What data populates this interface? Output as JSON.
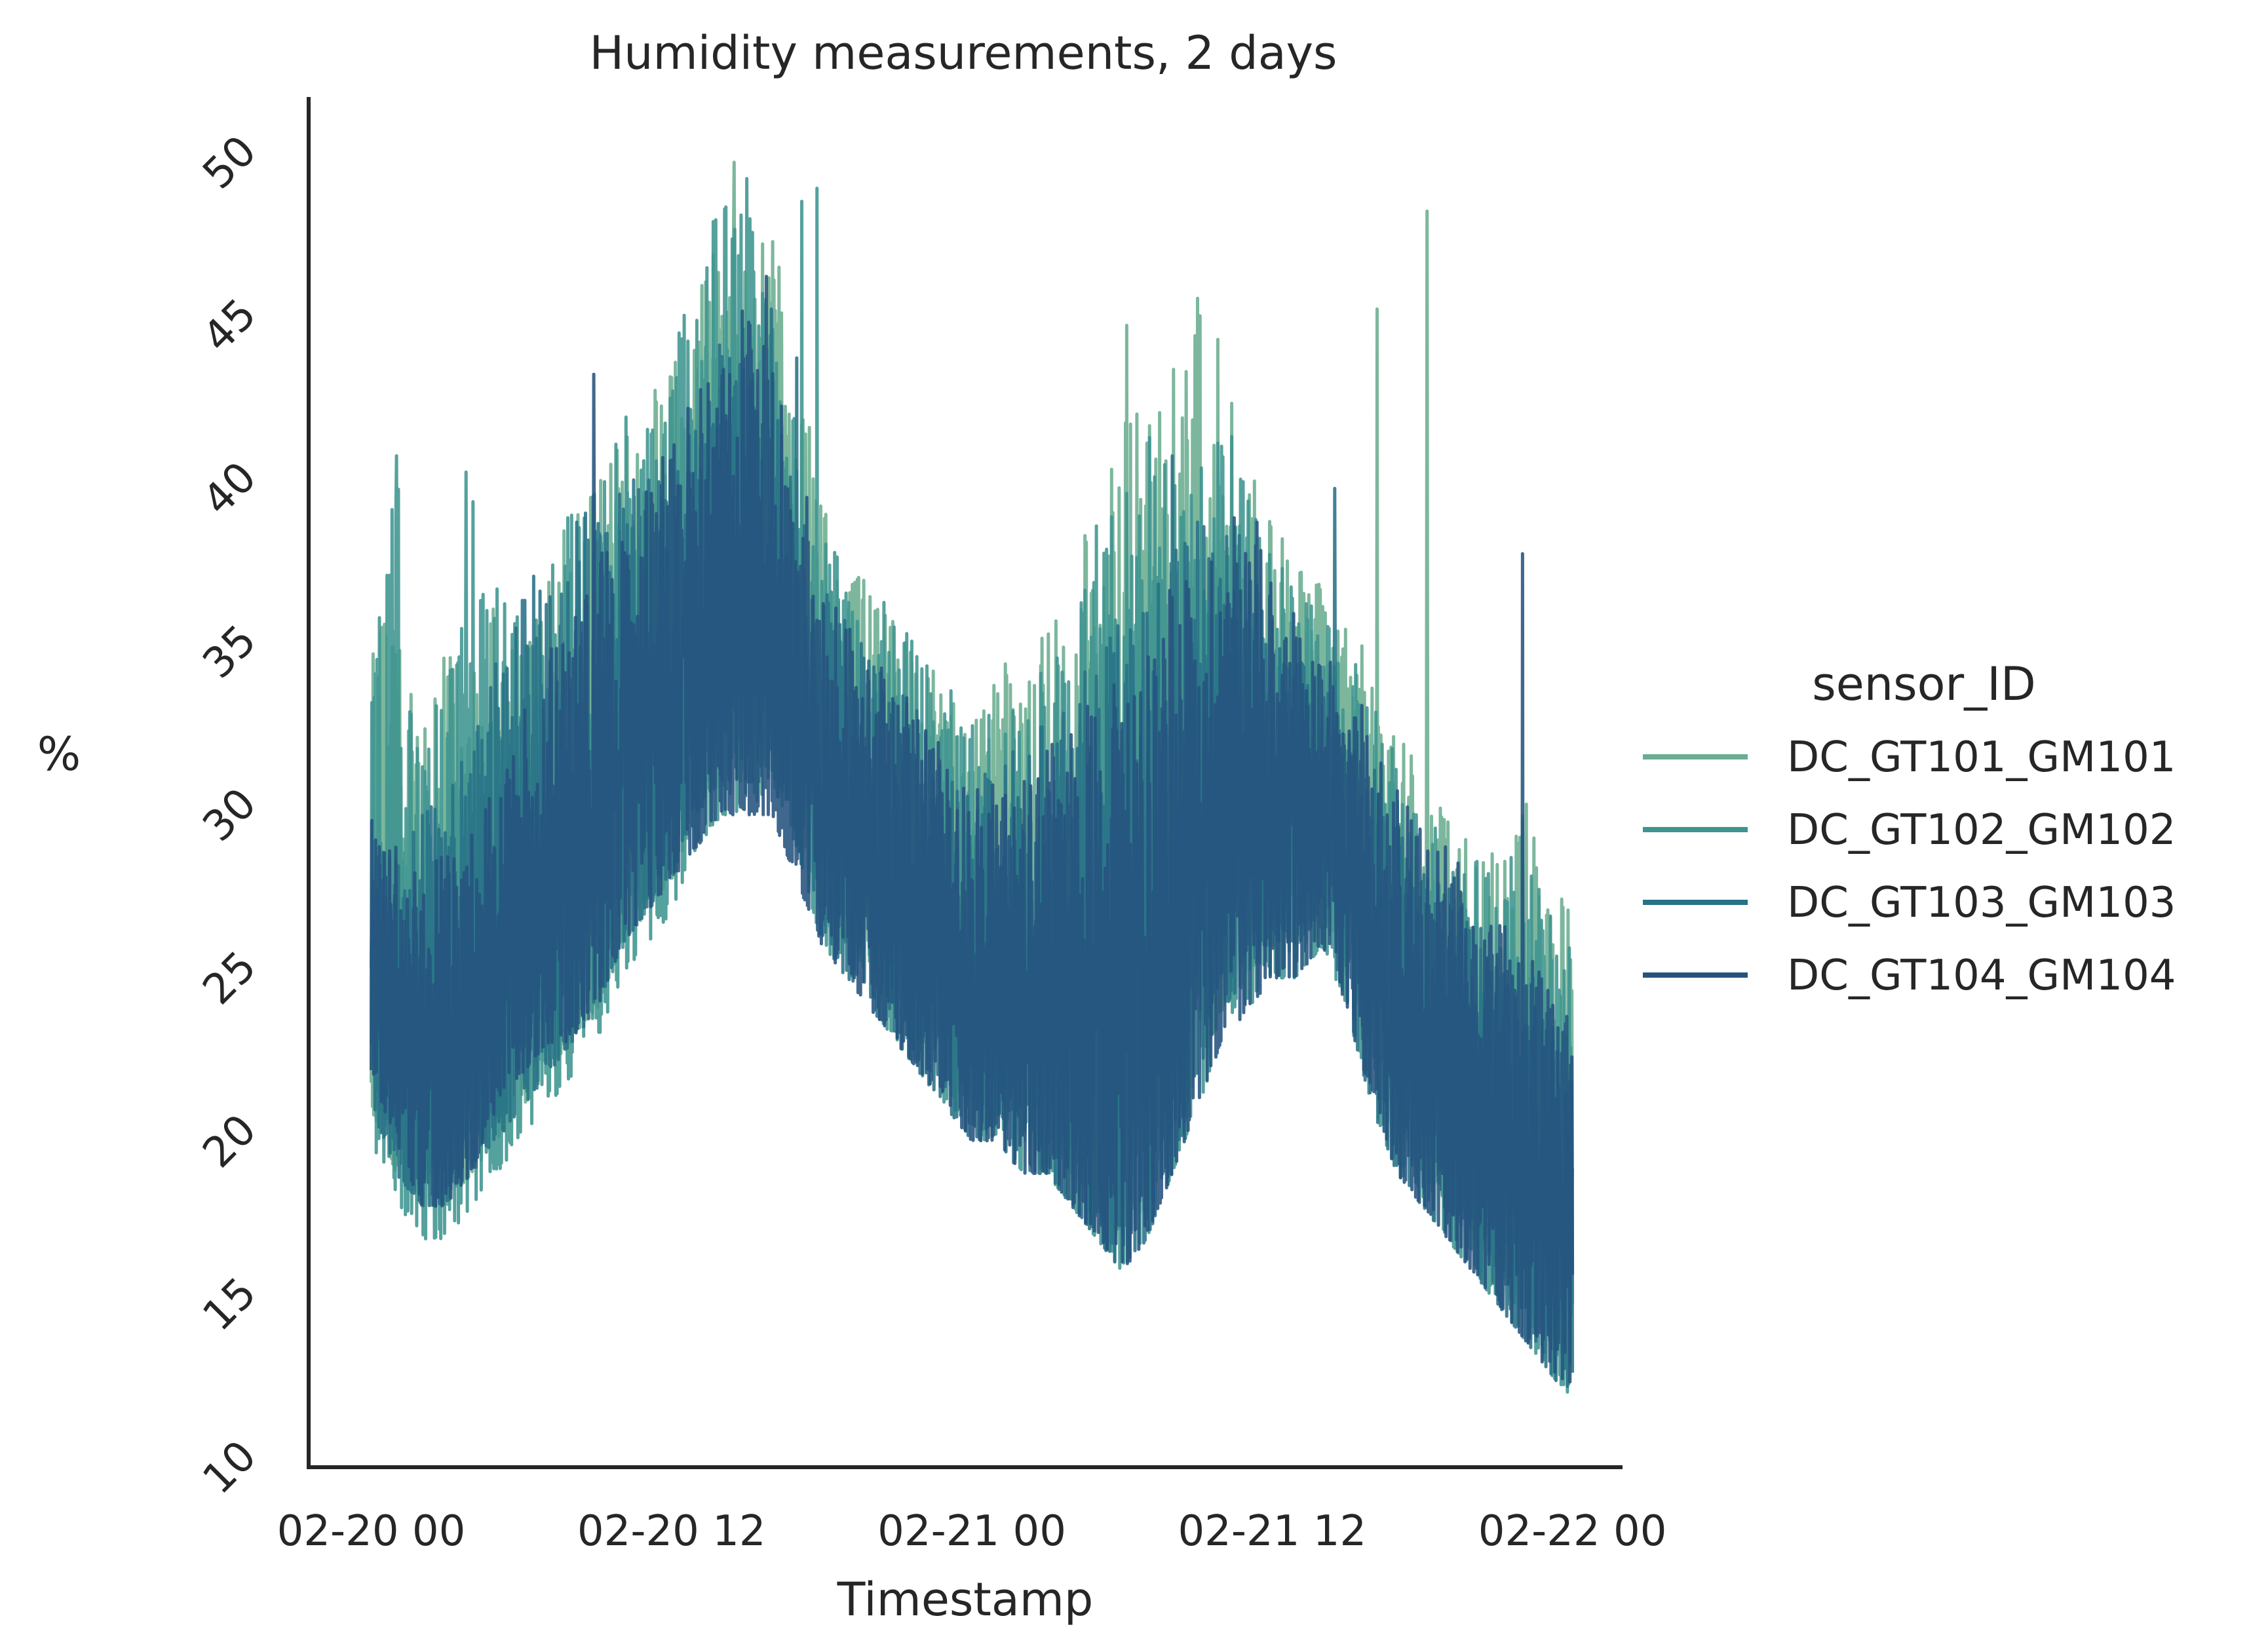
{
  "chart_data": {
    "type": "line",
    "title": "Humidity measurements, 2 days",
    "xlabel": "Timestamp",
    "ylabel": "%",
    "x_ticks": [
      "02-20 00",
      "02-20 12",
      "02-21 00",
      "02-21 12",
      "02-22 00"
    ],
    "y_ticks": [
      "10",
      "15",
      "20",
      "25",
      "30",
      "35",
      "40",
      "45",
      "50"
    ],
    "ylim": [
      10,
      52
    ],
    "x_range_hours": [
      -2.5,
      50
    ],
    "legend": {
      "title": "sensor_ID",
      "position": "right",
      "frame": false
    },
    "grid": false,
    "x": [
      0,
      1,
      2,
      3,
      4,
      5,
      6,
      7,
      8,
      9,
      10,
      11,
      12,
      13,
      14,
      15,
      16,
      17,
      18,
      19,
      20,
      21,
      22,
      23,
      24,
      25,
      26,
      27,
      28,
      29,
      30,
      31,
      32,
      33,
      34,
      35,
      36,
      37,
      38,
      39,
      40,
      41,
      42,
      43,
      44,
      45,
      46,
      47,
      48
    ],
    "series": [
      {
        "name": "DC_GT101_GM101",
        "color": "#6aad90",
        "low": [
          21,
          19,
          18,
          18,
          19,
          20,
          21,
          22,
          23,
          24,
          26,
          27,
          28,
          30,
          31,
          31,
          32,
          30,
          27,
          26,
          25,
          24,
          23,
          22,
          21,
          21,
          20,
          20,
          19,
          18,
          17,
          18,
          20,
          22,
          24,
          25,
          26,
          26,
          27,
          25,
          22,
          20,
          19,
          18,
          17,
          16,
          15,
          14,
          13
        ],
        "high": [
          35,
          37,
          33,
          35,
          34,
          37,
          35,
          38,
          39,
          40,
          42,
          43,
          44,
          46,
          49,
          47,
          48,
          44,
          40,
          38,
          37,
          36,
          35,
          34,
          33,
          35,
          34,
          36,
          38,
          40,
          42,
          44,
          45,
          46,
          45,
          41,
          39,
          38,
          37,
          36,
          35,
          33,
          31,
          30,
          29,
          30,
          31,
          28,
          27
        ],
        "spikes": [
          [
            6.8,
            35.9
          ],
          [
            14.5,
            50.0
          ],
          [
            30.2,
            45.0
          ],
          [
            40.2,
            45.5
          ],
          [
            42.2,
            48.5
          ]
        ]
      },
      {
        "name": "DC_GT102_GM102",
        "color": "#3e9490",
        "low": [
          20,
          18,
          17,
          17,
          18,
          19,
          20,
          21,
          22,
          23,
          25,
          26,
          27,
          29,
          30,
          30,
          31,
          29,
          26,
          25,
          24,
          23,
          22,
          21,
          20,
          20,
          19,
          19,
          18,
          17,
          16,
          17,
          19,
          21,
          23,
          24,
          25,
          25,
          26,
          24,
          21,
          19,
          18,
          17,
          16,
          15,
          14,
          13,
          12
        ],
        "high": [
          34,
          41,
          33,
          34,
          40,
          37,
          36,
          37,
          40,
          41,
          43,
          42,
          44,
          47,
          49,
          49,
          45,
          42,
          39,
          38,
          37,
          36,
          35,
          34,
          33,
          34,
          33,
          35,
          37,
          39,
          40,
          42,
          41,
          42,
          43,
          40,
          38,
          37,
          36,
          35,
          34,
          32,
          30,
          30,
          29,
          28,
          30,
          27,
          26
        ],
        "spikes": [
          [
            1.0,
            41.0
          ],
          [
            3.8,
            40.5
          ],
          [
            15.0,
            49.5
          ],
          [
            17.8,
            49.2
          ],
          [
            17.2,
            48.8
          ]
        ]
      },
      {
        "name": "DC_GT103_GM103",
        "color": "#287186",
        "low": [
          21,
          19,
          18,
          18,
          19,
          20,
          21,
          22,
          23,
          24,
          26,
          27,
          28,
          30,
          31,
          31,
          31,
          29,
          26,
          25,
          24,
          23,
          22,
          21,
          20,
          20,
          19,
          19,
          18,
          17,
          16,
          17,
          19,
          22,
          24,
          25,
          26,
          26,
          27,
          24,
          21,
          19,
          18,
          17,
          16,
          15,
          14,
          13,
          12
        ],
        "high": [
          30,
          30,
          30,
          31,
          33,
          35,
          37,
          38,
          39,
          40,
          40,
          41,
          41,
          42,
          45,
          44,
          43,
          40,
          37,
          36,
          35,
          34,
          33,
          32,
          31,
          32,
          32,
          33,
          34,
          35,
          36,
          37,
          38,
          39,
          40,
          38,
          36,
          35,
          34,
          33,
          32,
          30,
          29,
          28,
          27,
          26,
          25,
          24,
          24
        ],
        "spikes": [
          [
            16.0,
            45.5
          ],
          [
            17.0,
            44.0
          ],
          [
            32.0,
            41.0
          ],
          [
            38.5,
            40.0
          ]
        ]
      },
      {
        "name": "DC_GT104_GM104",
        "color": "#25537e",
        "low": [
          22,
          20,
          18,
          18,
          19,
          21,
          22,
          23,
          23,
          24,
          26,
          27,
          28,
          29,
          30,
          30,
          30,
          28,
          26,
          25,
          24,
          23,
          22,
          21,
          20,
          20,
          19,
          19,
          18,
          17,
          16,
          17,
          19,
          21,
          23,
          24,
          25,
          25,
          26,
          24,
          21,
          19,
          18,
          17,
          16,
          15,
          14,
          13,
          12
        ],
        "high": [
          30,
          29,
          28,
          29,
          30,
          31,
          33,
          35,
          36,
          38,
          39,
          40,
          42,
          43,
          44,
          46,
          44,
          41,
          38,
          36,
          35,
          34,
          33,
          32,
          31,
          31,
          31,
          32,
          33,
          34,
          35,
          36,
          37,
          38,
          39,
          40,
          39,
          36,
          35,
          34,
          33,
          31,
          30,
          29,
          28,
          27,
          26,
          25,
          24
        ],
        "spikes": [
          [
            8.9,
            43.5
          ],
          [
            15.8,
            46.5
          ],
          [
            46.0,
            38.0
          ]
        ]
      }
    ]
  }
}
